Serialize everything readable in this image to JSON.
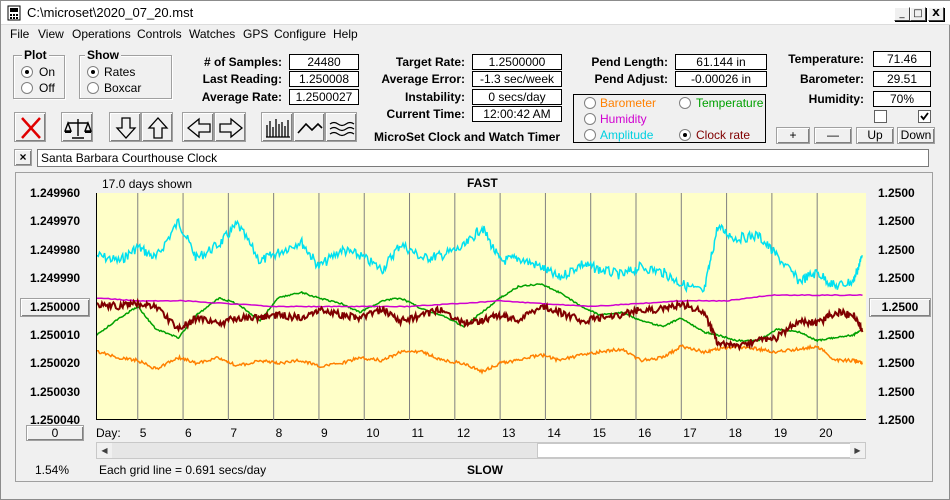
{
  "window": {
    "title": "C:\\microset\\2020_07_20.mst",
    "min": "_",
    "max": "□",
    "close": "X"
  },
  "menu": [
    "File",
    "View",
    "Operations",
    "Controls",
    "Watches",
    "GPS",
    "Configure",
    "Help"
  ],
  "plot_group": {
    "title": "Plot",
    "on": "On",
    "off": "Off",
    "selected": "On"
  },
  "show_group": {
    "title": "Show",
    "rates": "Rates",
    "boxcar": "Boxcar",
    "selected": "Rates"
  },
  "stats": {
    "samples_label": "# of Samples:",
    "samples": "24480",
    "last_label": "Last Reading:",
    "last": "1.250008",
    "avg_rate_label": "Average Rate:",
    "avg_rate": "1.2500027",
    "target_label": "Target Rate:",
    "target": "1.2500000",
    "avg_err_label": "Average Error:",
    "avg_err": "-1.3 sec/week",
    "instab_label": "Instability:",
    "instab": "0 secs/day",
    "time_label": "Current Time:",
    "time": "12:00:42 AM",
    "pend_len_label": "Pend Length:",
    "pend_len": "61.144 in",
    "pend_adj_label": "Pend Adjust:",
    "pend_adj": "-0.00026 in",
    "temp_label": "Temperature:",
    "temp": "71.46",
    "baro_label": "Barometer:",
    "baro": "29.51",
    "hum_label": "Humidity:",
    "hum": "70%"
  },
  "app_name": "MicroSet Clock and Watch Timer",
  "legend": {
    "barometer": "Barometer",
    "temperature": "Temperature",
    "humidity": "Humidity",
    "amplitude": "Amplitude",
    "clock_rate": "Clock rate",
    "selected": "Clock rate"
  },
  "adjust_buttons": {
    "plus": "+",
    "minus": "—",
    "up": "Up",
    "down": "Down"
  },
  "clock_name": "Santa Barbara Courthouse Clock",
  "clear_name": "×",
  "colors": {
    "barometer": "#ff8000",
    "temperature": "#00a000",
    "humidity": "#d000d0",
    "amplitude": "#00e0f0",
    "clock_rate": "#800000",
    "plot_bg": "#ffffc8"
  },
  "chart_data": {
    "type": "line",
    "days_shown": "17.0 days shown",
    "top_label": "FAST",
    "bottom_label": "SLOW",
    "grid_note": "Each grid line = 0.691 secs/day",
    "percent": "1.54%",
    "day_label": "Day:",
    "x_ticks": [
      "5",
      "6",
      "7",
      "8",
      "9",
      "10",
      "11",
      "12",
      "13",
      "14",
      "15",
      "16",
      "17",
      "18",
      "19",
      "20"
    ],
    "y_left_ticks": [
      "1.249960",
      "1.249970",
      "1.249980",
      "1.249990",
      "1.250000",
      "1.250010",
      "1.250020",
      "1.250030",
      "1.250040"
    ],
    "y_right_ticks": [
      "1.2500",
      "1.2500",
      "1.2500",
      "1.2500",
      "1.2500",
      "1.2500",
      "1.2500",
      "1.2500",
      "1.2500"
    ],
    "center_button": "1.250000",
    "right_button": "1.2500",
    "zero_button": "0",
    "xlim": [
      4.1,
      21.1
    ],
    "ylim": [
      1.24996,
      1.25004
    ],
    "series": [
      {
        "key": "amplitude",
        "x": [
          4.1,
          4.6,
          5.0,
          5.4,
          5.9,
          6.3,
          6.8,
          7.2,
          7.7,
          8.1,
          8.6,
          9.0,
          9.5,
          9.9,
          10.4,
          10.8,
          11.3,
          11.7,
          12.2,
          12.6,
          13.0,
          13.4,
          13.9,
          14.3,
          14.8,
          15.2,
          15.7,
          16.1,
          16.6,
          17.0,
          17.5,
          17.8,
          18.2,
          18.7,
          19.1,
          19.6,
          20.0,
          20.4,
          20.8,
          21.0
        ],
        "y": [
          1.249982,
          1.249984,
          1.249979,
          1.249983,
          1.24997,
          1.249983,
          1.249978,
          1.249971,
          1.249984,
          1.249981,
          1.249977,
          1.249986,
          1.24998,
          1.249982,
          1.249987,
          1.249978,
          1.249983,
          1.249982,
          1.249979,
          1.249972,
          1.249984,
          1.249983,
          1.249986,
          1.24999,
          1.249985,
          1.249987,
          1.249989,
          1.249986,
          1.249988,
          1.249992,
          1.249995,
          1.249972,
          1.249976,
          1.249975,
          1.249982,
          1.249991,
          1.249988,
          1.249993,
          1.249991,
          1.249982
        ]
      },
      {
        "key": "temperature",
        "x": [
          4.1,
          4.6,
          5.0,
          5.4,
          5.9,
          6.3,
          6.8,
          7.2,
          7.7,
          8.1,
          8.6,
          9.0,
          9.5,
          9.9,
          10.4,
          10.8,
          11.3,
          11.7,
          12.2,
          12.6,
          13.0,
          13.4,
          13.9,
          14.3,
          14.8,
          15.2,
          15.7,
          16.1,
          16.6,
          17.0,
          17.5,
          17.8,
          18.2,
          18.7,
          19.1,
          19.6,
          20.0,
          20.4,
          20.8,
          21.0
        ],
        "y": [
          1.25001,
          1.250004,
          1.25,
          1.250008,
          1.250011,
          1.250003,
          1.249997,
          1.249999,
          1.250005,
          1.249997,
          1.249995,
          1.249997,
          1.249999,
          1.250002,
          1.249998,
          1.249997,
          1.250001,
          1.250003,
          1.250007,
          1.250002,
          1.249997,
          1.249993,
          1.249992,
          1.249995,
          1.25,
          1.250003,
          1.250002,
          1.250005,
          1.250007,
          1.250004,
          1.250009,
          1.25001,
          1.250012,
          1.250012,
          1.250008,
          1.250009,
          1.250012,
          1.250011,
          1.25001,
          1.250008
        ]
      },
      {
        "key": "humidity",
        "x": [
          4.1,
          5.0,
          6.0,
          7.0,
          8.0,
          9.0,
          10.0,
          11.0,
          12.0,
          13.0,
          14.0,
          15.0,
          16.0,
          17.0,
          18.0,
          19.0,
          20.0,
          21.0
        ],
        "y": [
          1.249997,
          1.249998,
          1.249998,
          1.249999,
          1.25,
          1.25,
          1.25,
          1.25,
          1.249999,
          1.249998,
          1.249999,
          1.25,
          1.249999,
          1.249998,
          1.249998,
          1.249996,
          1.249996,
          1.249996
        ]
      },
      {
        "key": "clock_rate",
        "x": [
          4.1,
          4.6,
          5.0,
          5.4,
          5.9,
          6.3,
          6.8,
          7.2,
          7.7,
          8.1,
          8.6,
          9.0,
          9.5,
          9.9,
          10.4,
          10.8,
          11.3,
          11.7,
          12.2,
          12.6,
          13.0,
          13.4,
          13.9,
          14.3,
          14.8,
          15.2,
          15.7,
          16.1,
          16.6,
          17.0,
          17.5,
          17.8,
          18.2,
          18.7,
          19.1,
          19.6,
          20.0,
          20.4,
          20.8,
          21.0
        ],
        "y": [
          1.249999,
          1.25,
          1.249999,
          1.25,
          1.250008,
          1.250004,
          1.250006,
          1.250004,
          1.250004,
          1.250003,
          1.250004,
          1.250001,
          1.250003,
          1.250004,
          1.250001,
          1.250005,
          1.250003,
          1.250001,
          1.250006,
          1.250005,
          1.250003,
          1.250005,
          1.25,
          1.250002,
          1.250005,
          1.250004,
          1.250003,
          1.250001,
          1.250001,
          1.249999,
          1.250002,
          1.250013,
          1.250014,
          1.250012,
          1.250011,
          1.250005,
          1.250006,
          1.250002,
          1.250003,
          1.250009
        ]
      },
      {
        "key": "barometer",
        "x": [
          4.1,
          4.6,
          5.0,
          5.4,
          5.9,
          6.3,
          6.8,
          7.2,
          7.7,
          8.1,
          8.6,
          9.0,
          9.5,
          9.9,
          10.4,
          10.8,
          11.3,
          11.7,
          12.2,
          12.6,
          13.0,
          13.4,
          13.9,
          14.3,
          14.8,
          15.2,
          15.7,
          16.1,
          16.6,
          17.0,
          17.5,
          17.8,
          18.2,
          18.7,
          19.1,
          19.6,
          20.0,
          20.4,
          20.8,
          21.0
        ],
        "y": [
          1.250016,
          1.250018,
          1.250019,
          1.250022,
          1.250018,
          1.25002,
          1.250018,
          1.250021,
          1.250019,
          1.25002,
          1.250019,
          1.250021,
          1.25002,
          1.250018,
          1.250019,
          1.250016,
          1.250016,
          1.250019,
          1.25002,
          1.250023,
          1.25002,
          1.250019,
          1.250017,
          1.250019,
          1.250017,
          1.250016,
          1.250015,
          1.250019,
          1.250018,
          1.250014,
          1.250016,
          1.250015,
          1.250014,
          1.250015,
          1.250016,
          1.250015,
          1.250014,
          1.250019,
          1.250019,
          1.25002
        ]
      }
    ]
  }
}
